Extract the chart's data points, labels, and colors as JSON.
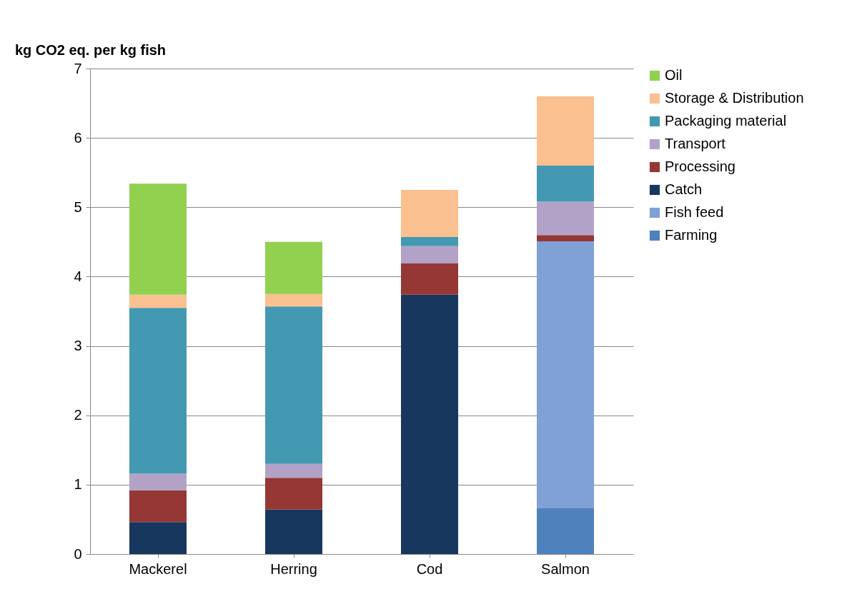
{
  "chart_data": {
    "type": "bar",
    "stacked": true,
    "ylabel": "kg CO2 eq. per kg fish",
    "categories": [
      "Mackerel",
      "Herring",
      "Cod",
      "Salmon"
    ],
    "series": [
      {
        "name": "Farming",
        "color": "#4f81bd",
        "values": [
          null,
          null,
          null,
          0.66
        ]
      },
      {
        "name": "Fish feed",
        "color": "#7fa1d6",
        "values": [
          null,
          null,
          null,
          3.85
        ]
      },
      {
        "name": "Catch",
        "color": "#17375e",
        "values": [
          0.46,
          0.64,
          3.74,
          null
        ]
      },
      {
        "name": "Processing",
        "color": "#953735",
        "values": [
          0.46,
          0.46,
          0.45,
          0.09
        ]
      },
      {
        "name": "Transport",
        "color": "#b3a2c7",
        "values": [
          0.24,
          0.2,
          0.25,
          0.48
        ]
      },
      {
        "name": "Packaging material",
        "color": "#4399b1",
        "values": [
          2.39,
          2.27,
          0.13,
          0.52
        ]
      },
      {
        "name": "Storage & Distribution",
        "color": "#fac090",
        "values": [
          0.19,
          0.18,
          0.68,
          1.0
        ]
      },
      {
        "name": "Oil",
        "color": "#92d050",
        "values": [
          1.6,
          0.75,
          null,
          null
        ]
      }
    ],
    "ylim": [
      0,
      7
    ],
    "yticks": [
      0,
      1,
      2,
      3,
      4,
      5,
      6,
      7
    ],
    "grid": "y",
    "legend": "right"
  }
}
